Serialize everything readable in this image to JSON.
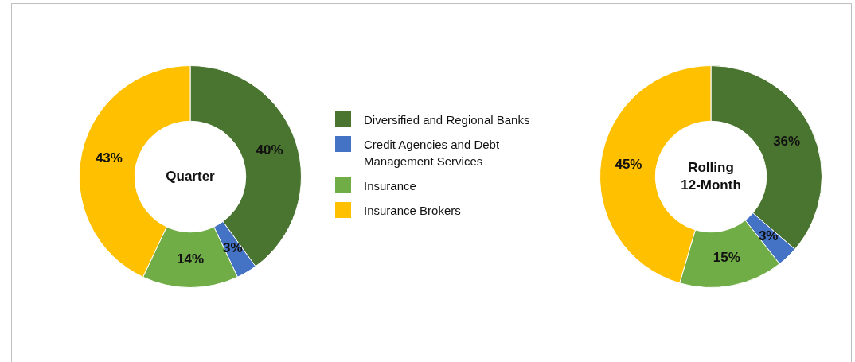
{
  "chart_data": [
    {
      "type": "donut",
      "title": "Quarter",
      "categories": [
        "Diversified and Regional Banks",
        "Credit Agencies and Debt Management Services",
        "Insurance",
        "Insurance Brokers"
      ],
      "values": [
        40,
        3,
        14,
        43
      ],
      "value_labels": [
        "40%",
        "3%",
        "14%",
        "43%"
      ],
      "colors": [
        "#4a7530",
        "#4472c4",
        "#70ad47",
        "#ffc000"
      ],
      "legend": "right"
    },
    {
      "type": "donut",
      "title": "Rolling 12-Month",
      "categories": [
        null,
        null,
        null,
        null
      ],
      "values": [
        36,
        3,
        15,
        45
      ],
      "value_labels": [
        "36%",
        "3%",
        "15%",
        "45%"
      ],
      "colors": [
        "#4a7530",
        "#4472c4",
        "#70ad47",
        "#ffc000"
      ]
    }
  ]
}
